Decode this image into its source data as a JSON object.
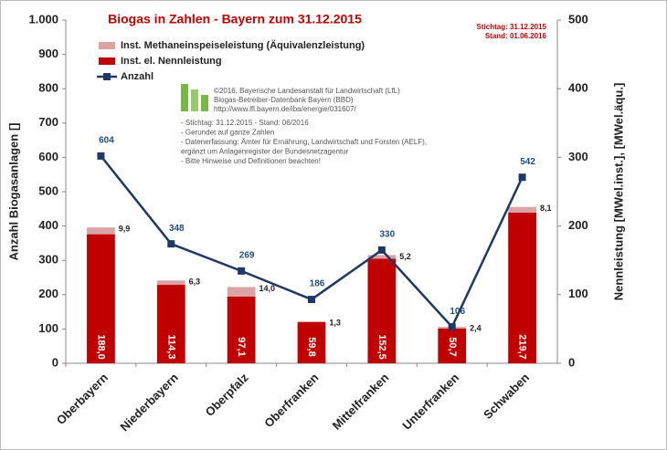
{
  "chart_data": {
    "type": "bar",
    "title": "Biogas in Zahlen - Bayern zum 31.12.2015",
    "stamp": [
      "Stichtag: 31.12.2015",
      "Stand: 01.06.2016"
    ],
    "source_lines": [
      "©2016, Bayerische Landesanstalt für Landwirtschaft (LfL)",
      "Biogas-Betreiber-Datenbank Bayern (BBD)",
      "http://www.lfl.bayern.de/iba/energie/031607/"
    ],
    "notes": [
      "- Stichtag: 31.12.2015 - Stand: 06/2016",
      "- Gerundet auf ganze Zahlen",
      "- Datenerfassung: Ämter  für Ernährung, Landwirtschaft und Forsten (AELF),",
      "   ergänzt um Anlagenregister der Bundesnetzagentur",
      "- Bitte Hinweise und Definitionen beachten!"
    ],
    "ylabel": "Anzahl Biogasanlagen []",
    "y2label": "Nennleistung [MWel.inst.], [MWel.äqu.]",
    "categories": [
      "Oberbayern",
      "Niederbayern",
      "Oberpfalz",
      "Oberfranken",
      "Mittelfranken",
      "Unterfranken",
      "Schwaben"
    ],
    "series": [
      {
        "name": "Inst. Methaneinspeiseleistung (Äquivalenzleistung)",
        "type": "bar",
        "axis": "y2",
        "color": "#dba3a3",
        "values": [
          9.9,
          6.3,
          14.0,
          1.3,
          5.2,
          2.4,
          8.1
        ],
        "value_labels": [
          "9,9",
          "6,3",
          "14,0",
          "1,3",
          "5,2",
          "2,4",
          "8,1"
        ]
      },
      {
        "name": "Inst. el. Nennleistung",
        "type": "bar",
        "axis": "y2",
        "color": "#c00000",
        "values": [
          188.0,
          114.3,
          97.1,
          59.8,
          152.5,
          50.7,
          219.7
        ],
        "value_labels": [
          "188,0",
          "114,3",
          "97,1",
          "59,8",
          "152,5",
          "50,7",
          "219,7"
        ]
      },
      {
        "name": "Anzahl",
        "type": "line",
        "axis": "y",
        "color": "#1f3864",
        "values": [
          604,
          348,
          269,
          186,
          330,
          106,
          542
        ]
      }
    ],
    "ylim": [
      0,
      1000
    ],
    "yticks": [
      0,
      100,
      200,
      300,
      400,
      500,
      600,
      700,
      800,
      900,
      {
        "value": 1000,
        "label": "1.000"
      }
    ],
    "y2lim": [
      0,
      500
    ],
    "y2ticks": [
      0,
      100,
      200,
      300,
      400,
      500
    ],
    "grid": false
  }
}
